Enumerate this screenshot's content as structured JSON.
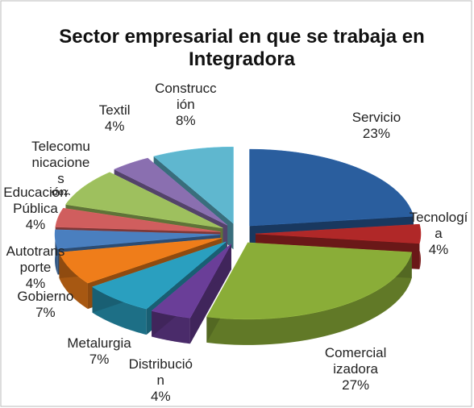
{
  "chart_data": {
    "type": "pie",
    "title": "Sector empresarial en que se trabaja en Integradora",
    "categories": [
      "Servicio",
      "Tecnología",
      "Comercializadora",
      "Distribución",
      "Metalurgia",
      "Gobierno",
      "Autotransporte",
      "Educación Pública",
      "Telecomunicaciones",
      "Textil",
      "Construcción"
    ],
    "values": [
      23,
      4,
      27,
      4,
      7,
      7,
      4,
      4,
      8,
      4,
      8
    ],
    "value_labels": [
      "23%",
      "4%",
      "27%",
      "4%",
      "7%",
      "7%",
      "4%",
      "4%",
      "8%",
      "4%",
      "8%"
    ],
    "colors": [
      "#2a5e9e",
      "#b02828",
      "#8aad38",
      "#6a3e98",
      "#2a9fbf",
      "#ef7d1a",
      "#4a7fbf",
      "#d05e5e",
      "#9ec05e",
      "#8a6fb0",
      "#5fb7cf"
    ]
  }
}
